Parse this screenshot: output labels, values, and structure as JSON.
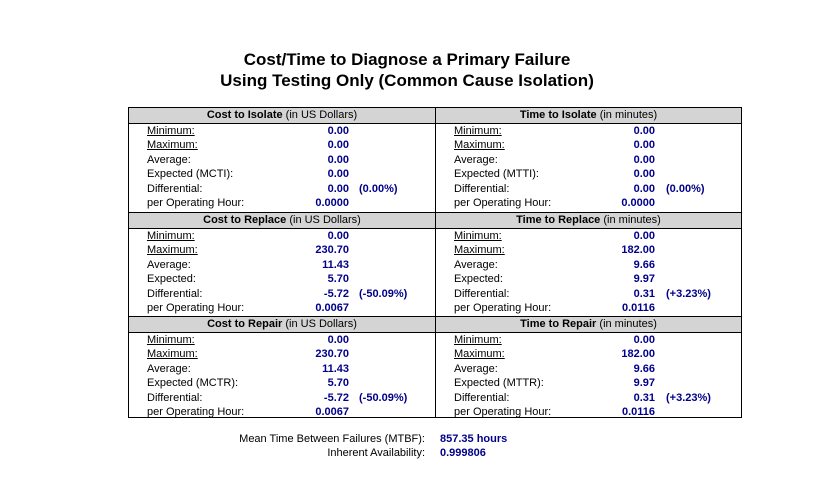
{
  "title": {
    "line1": "Cost/Time to Diagnose a Primary Failure",
    "line2": "Using Testing Only (Common Cause Isolation)"
  },
  "panels": [
    {
      "id": "cost-isolate",
      "title_bold": "Cost to Isolate",
      "title_rest": " (in US Dollars)",
      "rows": [
        {
          "label": "Minimum:",
          "value": "0.00",
          "pct": ""
        },
        {
          "label": "Maximum:",
          "value": "0.00",
          "pct": ""
        },
        {
          "label": "Average:",
          "value": "0.00",
          "pct": ""
        },
        {
          "label": "Expected (MCTI):",
          "value": "0.00",
          "pct": ""
        },
        {
          "label": "Differential:",
          "value": "0.00",
          "pct": "(0.00%)"
        },
        {
          "label": "per Operating Hour:",
          "value": "0.0000",
          "pct": ""
        }
      ]
    },
    {
      "id": "time-isolate",
      "title_bold": "Time to Isolate",
      "title_rest": " (in minutes)",
      "rows": [
        {
          "label": "Minimum:",
          "value": "0.00",
          "pct": ""
        },
        {
          "label": "Maximum:",
          "value": "0.00",
          "pct": ""
        },
        {
          "label": "Average:",
          "value": "0.00",
          "pct": ""
        },
        {
          "label": "Expected (MTTI):",
          "value": "0.00",
          "pct": ""
        },
        {
          "label": "Differential:",
          "value": "0.00",
          "pct": "(0.00%)"
        },
        {
          "label": "per Operating Hour:",
          "value": "0.0000",
          "pct": ""
        }
      ]
    },
    {
      "id": "cost-replace",
      "title_bold": "Cost to Replace",
      "title_rest": " (in US Dollars)",
      "rows": [
        {
          "label": "Minimum:",
          "value": "0.00",
          "pct": ""
        },
        {
          "label": "Maximum:",
          "value": "230.70",
          "pct": ""
        },
        {
          "label": "Average:",
          "value": "11.43",
          "pct": ""
        },
        {
          "label": "Expected:",
          "value": "5.70",
          "pct": ""
        },
        {
          "label": "Differential:",
          "value": "-5.72",
          "pct": "(-50.09%)"
        },
        {
          "label": "per Operating Hour:",
          "value": "0.0067",
          "pct": ""
        }
      ]
    },
    {
      "id": "time-replace",
      "title_bold": "Time to Replace",
      "title_rest": " (in minutes)",
      "rows": [
        {
          "label": "Minimum:",
          "value": "0.00",
          "pct": ""
        },
        {
          "label": "Maximum:",
          "value": "182.00",
          "pct": ""
        },
        {
          "label": "Average:",
          "value": "9.66",
          "pct": ""
        },
        {
          "label": "Expected:",
          "value": "9.97",
          "pct": ""
        },
        {
          "label": "Differential:",
          "value": "0.31",
          "pct": "(+3.23%)"
        },
        {
          "label": "per Operating Hour:",
          "value": "0.0116",
          "pct": ""
        }
      ]
    },
    {
      "id": "cost-repair",
      "title_bold": "Cost to Repair",
      "title_rest": " (in US Dollars)",
      "rows": [
        {
          "label": "Minimum:",
          "value": "0.00",
          "pct": ""
        },
        {
          "label": "Maximum:",
          "value": "230.70",
          "pct": ""
        },
        {
          "label": "Average:",
          "value": "11.43",
          "pct": ""
        },
        {
          "label": "Expected (MCTR):",
          "value": "5.70",
          "pct": ""
        },
        {
          "label": "Differential:",
          "value": "-5.72",
          "pct": "(-50.09%)"
        },
        {
          "label": "per Operating Hour:",
          "value": "0.0067",
          "pct": ""
        }
      ]
    },
    {
      "id": "time-repair",
      "title_bold": "Time to Repair",
      "title_rest": " (in minutes)",
      "rows": [
        {
          "label": "Minimum:",
          "value": "0.00",
          "pct": ""
        },
        {
          "label": "Maximum:",
          "value": "182.00",
          "pct": ""
        },
        {
          "label": "Average:",
          "value": "9.66",
          "pct": ""
        },
        {
          "label": "Expected (MTTR):",
          "value": "9.97",
          "pct": ""
        },
        {
          "label": "Differential:",
          "value": "0.31",
          "pct": "(+3.23%)"
        },
        {
          "label": "per Operating Hour:",
          "value": "0.0116",
          "pct": ""
        }
      ]
    }
  ],
  "footer": {
    "mtbf_label": "Mean Time Between Failures (MTBF):",
    "mtbf_value": "857.35 hours",
    "availability_label": "Inherent Availability:",
    "availability_value": "0.999806"
  },
  "colors": {
    "value_text": "#00008b",
    "header_bg": "#d4d4d4"
  }
}
